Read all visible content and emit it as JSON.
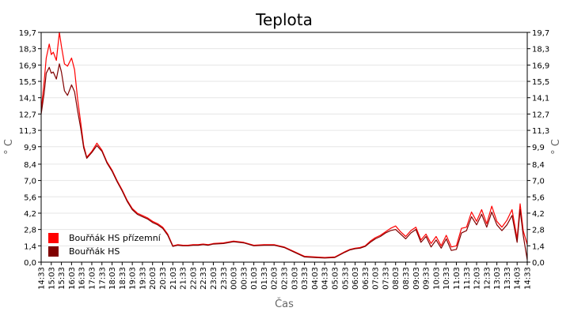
{
  "chart_data": {
    "type": "line",
    "title": "Teplota",
    "xlabel": "Čas",
    "ylabel": "° C",
    "ylim": [
      0,
      19.7
    ],
    "grid": true,
    "legend_placement": "bottom-left",
    "y_ticks": [
      "0,0",
      "1,4",
      "2,8",
      "4,2",
      "5,6",
      "7,0",
      "8,4",
      "9,9",
      "11,3",
      "12,7",
      "14,1",
      "15,5",
      "16,9",
      "18,3",
      "19,7"
    ],
    "x_ticks": [
      "14:33",
      "15:03",
      "15:33",
      "16:03",
      "16:33",
      "17:03",
      "17:33",
      "18:03",
      "18:33",
      "19:03",
      "19:33",
      "20:03",
      "20:33",
      "21:03",
      "21:33",
      "22:03",
      "22:33",
      "23:03",
      "23:33",
      "00:03",
      "00:33",
      "01:03",
      "01:33",
      "02:03",
      "02:33",
      "03:03",
      "03:33",
      "04:03",
      "04:33",
      "05:03",
      "05:33",
      "06:03",
      "06:33",
      "07:03",
      "07:33",
      "08:03",
      "08:33",
      "09:03",
      "09:33",
      "10:03",
      "10:33",
      "11:03",
      "11:33",
      "12:03",
      "12:33",
      "13:03",
      "13:33",
      "14:03",
      "14:33"
    ],
    "series": [
      {
        "name": "Bouřňák HS přízemní",
        "color": "#ff0000",
        "x": [
          0,
          0.3,
          0.5,
          0.8,
          1.0,
          1.2,
          1.5,
          1.8,
          2.0,
          2.3,
          2.6,
          3.0,
          3.3,
          3.6,
          3.9,
          4.2,
          4.5,
          5.0,
          5.5,
          6.0,
          6.5,
          7.0,
          7.5,
          8.0,
          8.5,
          9.0,
          9.5,
          10,
          10.5,
          11,
          11.5,
          12,
          12.5,
          13,
          13.5,
          14,
          14.5,
          15,
          15.5,
          16,
          16.5,
          17,
          18,
          19,
          20,
          21,
          22,
          23,
          24,
          25,
          26,
          27,
          28,
          29,
          30,
          30.5,
          31,
          31.5,
          32,
          32.5,
          33,
          33.5,
          34,
          34.5,
          35,
          35.5,
          36,
          36.5,
          37,
          37.5,
          38,
          38.5,
          39,
          39.5,
          40,
          40.5,
          41,
          41.5,
          42,
          42.5,
          43,
          43.5,
          44,
          44.5,
          45,
          45.5,
          46,
          46.5,
          47,
          47.3,
          47.6,
          48
        ],
        "values": [
          13.0,
          15.5,
          17.5,
          18.7,
          17.8,
          18.0,
          17.3,
          19.7,
          18.5,
          17.0,
          16.8,
          17.5,
          16.5,
          14.0,
          12.0,
          10.0,
          9.0,
          9.5,
          10.2,
          9.6,
          8.6,
          7.9,
          7.0,
          6.2,
          5.3,
          4.6,
          4.2,
          4.0,
          3.8,
          3.5,
          3.3,
          3.0,
          2.4,
          1.4,
          1.5,
          1.45,
          1.45,
          1.5,
          1.5,
          1.55,
          1.5,
          1.6,
          1.65,
          1.8,
          1.7,
          1.45,
          1.5,
          1.5,
          1.3,
          0.9,
          0.5,
          0.45,
          0.4,
          0.45,
          0.9,
          1.1,
          1.2,
          1.25,
          1.4,
          1.8,
          2.1,
          2.3,
          2.6,
          2.9,
          3.1,
          2.6,
          2.2,
          2.7,
          3.0,
          1.9,
          2.4,
          1.6,
          2.2,
          1.4,
          2.3,
          1.3,
          1.4,
          2.9,
          3.0,
          4.3,
          3.5,
          4.5,
          3.3,
          4.8,
          3.5,
          3.0,
          3.6,
          4.5,
          2.0,
          5.0,
          2.7,
          1.5
        ]
      },
      {
        "name": "Bouřňák HS",
        "color": "#800000",
        "x": [
          0,
          0.3,
          0.5,
          0.8,
          1.0,
          1.2,
          1.5,
          1.8,
          2.0,
          2.3,
          2.6,
          3.0,
          3.3,
          3.6,
          3.9,
          4.2,
          4.5,
          5.0,
          5.5,
          6.0,
          6.5,
          7.0,
          7.5,
          8.0,
          8.5,
          9.0,
          9.5,
          10,
          10.5,
          11,
          11.5,
          12,
          12.5,
          13,
          13.5,
          14,
          14.5,
          15,
          15.5,
          16,
          16.5,
          17,
          18,
          19,
          20,
          21,
          22,
          23,
          24,
          25,
          26,
          27,
          28,
          29,
          30,
          30.5,
          31,
          31.5,
          32,
          32.5,
          33,
          33.5,
          34,
          34.5,
          35,
          35.5,
          36,
          36.5,
          37,
          37.5,
          38,
          38.5,
          39,
          39.5,
          40,
          40.5,
          41,
          41.5,
          42,
          42.5,
          43,
          43.5,
          44,
          44.5,
          45,
          45.5,
          46,
          46.5,
          47,
          47.3,
          47.6,
          48
        ],
        "values": [
          12.7,
          14.5,
          16.2,
          16.7,
          16.2,
          16.3,
          15.7,
          17.0,
          16.3,
          14.7,
          14.3,
          15.2,
          14.6,
          13.0,
          11.5,
          9.8,
          8.9,
          9.4,
          10.0,
          9.5,
          8.5,
          7.8,
          6.9,
          6.1,
          5.2,
          4.5,
          4.1,
          3.9,
          3.7,
          3.4,
          3.2,
          2.9,
          2.3,
          1.35,
          1.45,
          1.4,
          1.4,
          1.45,
          1.45,
          1.5,
          1.45,
          1.55,
          1.6,
          1.75,
          1.65,
          1.4,
          1.45,
          1.45,
          1.25,
          0.85,
          0.45,
          0.4,
          0.35,
          0.4,
          0.85,
          1.05,
          1.15,
          1.2,
          1.35,
          1.7,
          2.0,
          2.2,
          2.5,
          2.7,
          2.8,
          2.4,
          2.0,
          2.5,
          2.8,
          1.7,
          2.2,
          1.3,
          1.9,
          1.2,
          2.0,
          1.0,
          1.1,
          2.5,
          2.7,
          3.9,
          3.2,
          4.1,
          3.0,
          4.3,
          3.2,
          2.7,
          3.2,
          4.0,
          1.7,
          4.5,
          2.3,
          0.2
        ]
      }
    ]
  }
}
